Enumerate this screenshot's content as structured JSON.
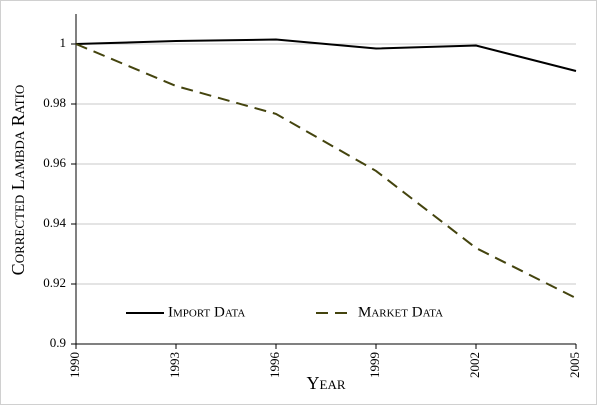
{
  "chart_data": {
    "type": "line",
    "x_label": "Year",
    "y_label": "Corrected Lambda Ratio",
    "x": [
      1990,
      1993,
      1996,
      1999,
      2002,
      2005
    ],
    "series": [
      {
        "name": "Import Data",
        "color": "#000000",
        "dash": false,
        "values": [
          1.0,
          1.001,
          1.0015,
          0.9985,
          0.9995,
          0.991
        ]
      },
      {
        "name": "Market Data",
        "color": "#44440e",
        "dash": true,
        "values": [
          1.0,
          0.986,
          0.9767,
          0.9577,
          0.932,
          0.9153
        ]
      }
    ],
    "xlim": [
      1990,
      2005
    ],
    "xticks": [
      1990,
      1993,
      1996,
      1999,
      2002,
      2005
    ],
    "ylim": [
      0.9,
      1.01
    ],
    "yticks": [
      0.9,
      0.92,
      0.94,
      0.96,
      0.98,
      1
    ],
    "grid": true,
    "legend": "lower left"
  }
}
